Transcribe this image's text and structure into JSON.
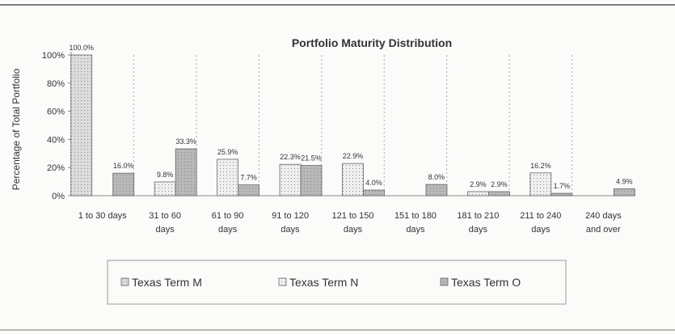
{
  "chart_data": {
    "type": "bar",
    "title": "Portfolio Maturity Distribution",
    "y_label": "Percentage of Total Portfolio",
    "categories": [
      "1 to 30 days",
      "31 to 60 days",
      "61 to 90 days",
      "91 to 120 days",
      "121 to 150 days",
      "151 to 180 days",
      "181 to 210 days",
      "211 to 240 days",
      "240 days and over"
    ],
    "series": [
      {
        "name": "Texas Term M",
        "color": "#dcdcdc",
        "values": [
          100,
          0,
          0,
          0,
          0,
          0,
          0,
          0,
          0
        ],
        "value_labels": [
          "100.0%",
          null,
          null,
          null,
          null,
          null,
          null,
          null,
          null
        ]
      },
      {
        "name": "Texas Term N",
        "color": "#efefef",
        "values": [
          0,
          9.8,
          25.9,
          22.3,
          22.9,
          0,
          2.9,
          16.2,
          0
        ],
        "value_labels": [
          null,
          "9.8%",
          "25.9%",
          "22.3%",
          "22.9%",
          null,
          "2.9%",
          "16.2%",
          null
        ]
      },
      {
        "name": "Texas Term O",
        "color": "#b8b8b8",
        "values": [
          16,
          33.3,
          7.7,
          21.5,
          4,
          8,
          2.9,
          1.7,
          4.9
        ],
        "value_labels": [
          "16.0%",
          "33.3%",
          "7.7%",
          "21.5%",
          "4.0%",
          "8.0%",
          "2.9%",
          "1.7%",
          "4.9%"
        ]
      }
    ],
    "ylim": [
      0,
      100
    ],
    "yticks": [
      {
        "value": 0,
        "label": "0%"
      },
      {
        "value": 20,
        "label": "20%"
      },
      {
        "value": 40,
        "label": "40%"
      },
      {
        "value": 60,
        "label": "60%"
      },
      {
        "value": 80,
        "label": "80%"
      },
      {
        "value": 100,
        "label": "100%"
      }
    ],
    "grid": true,
    "legend": "bottom"
  }
}
